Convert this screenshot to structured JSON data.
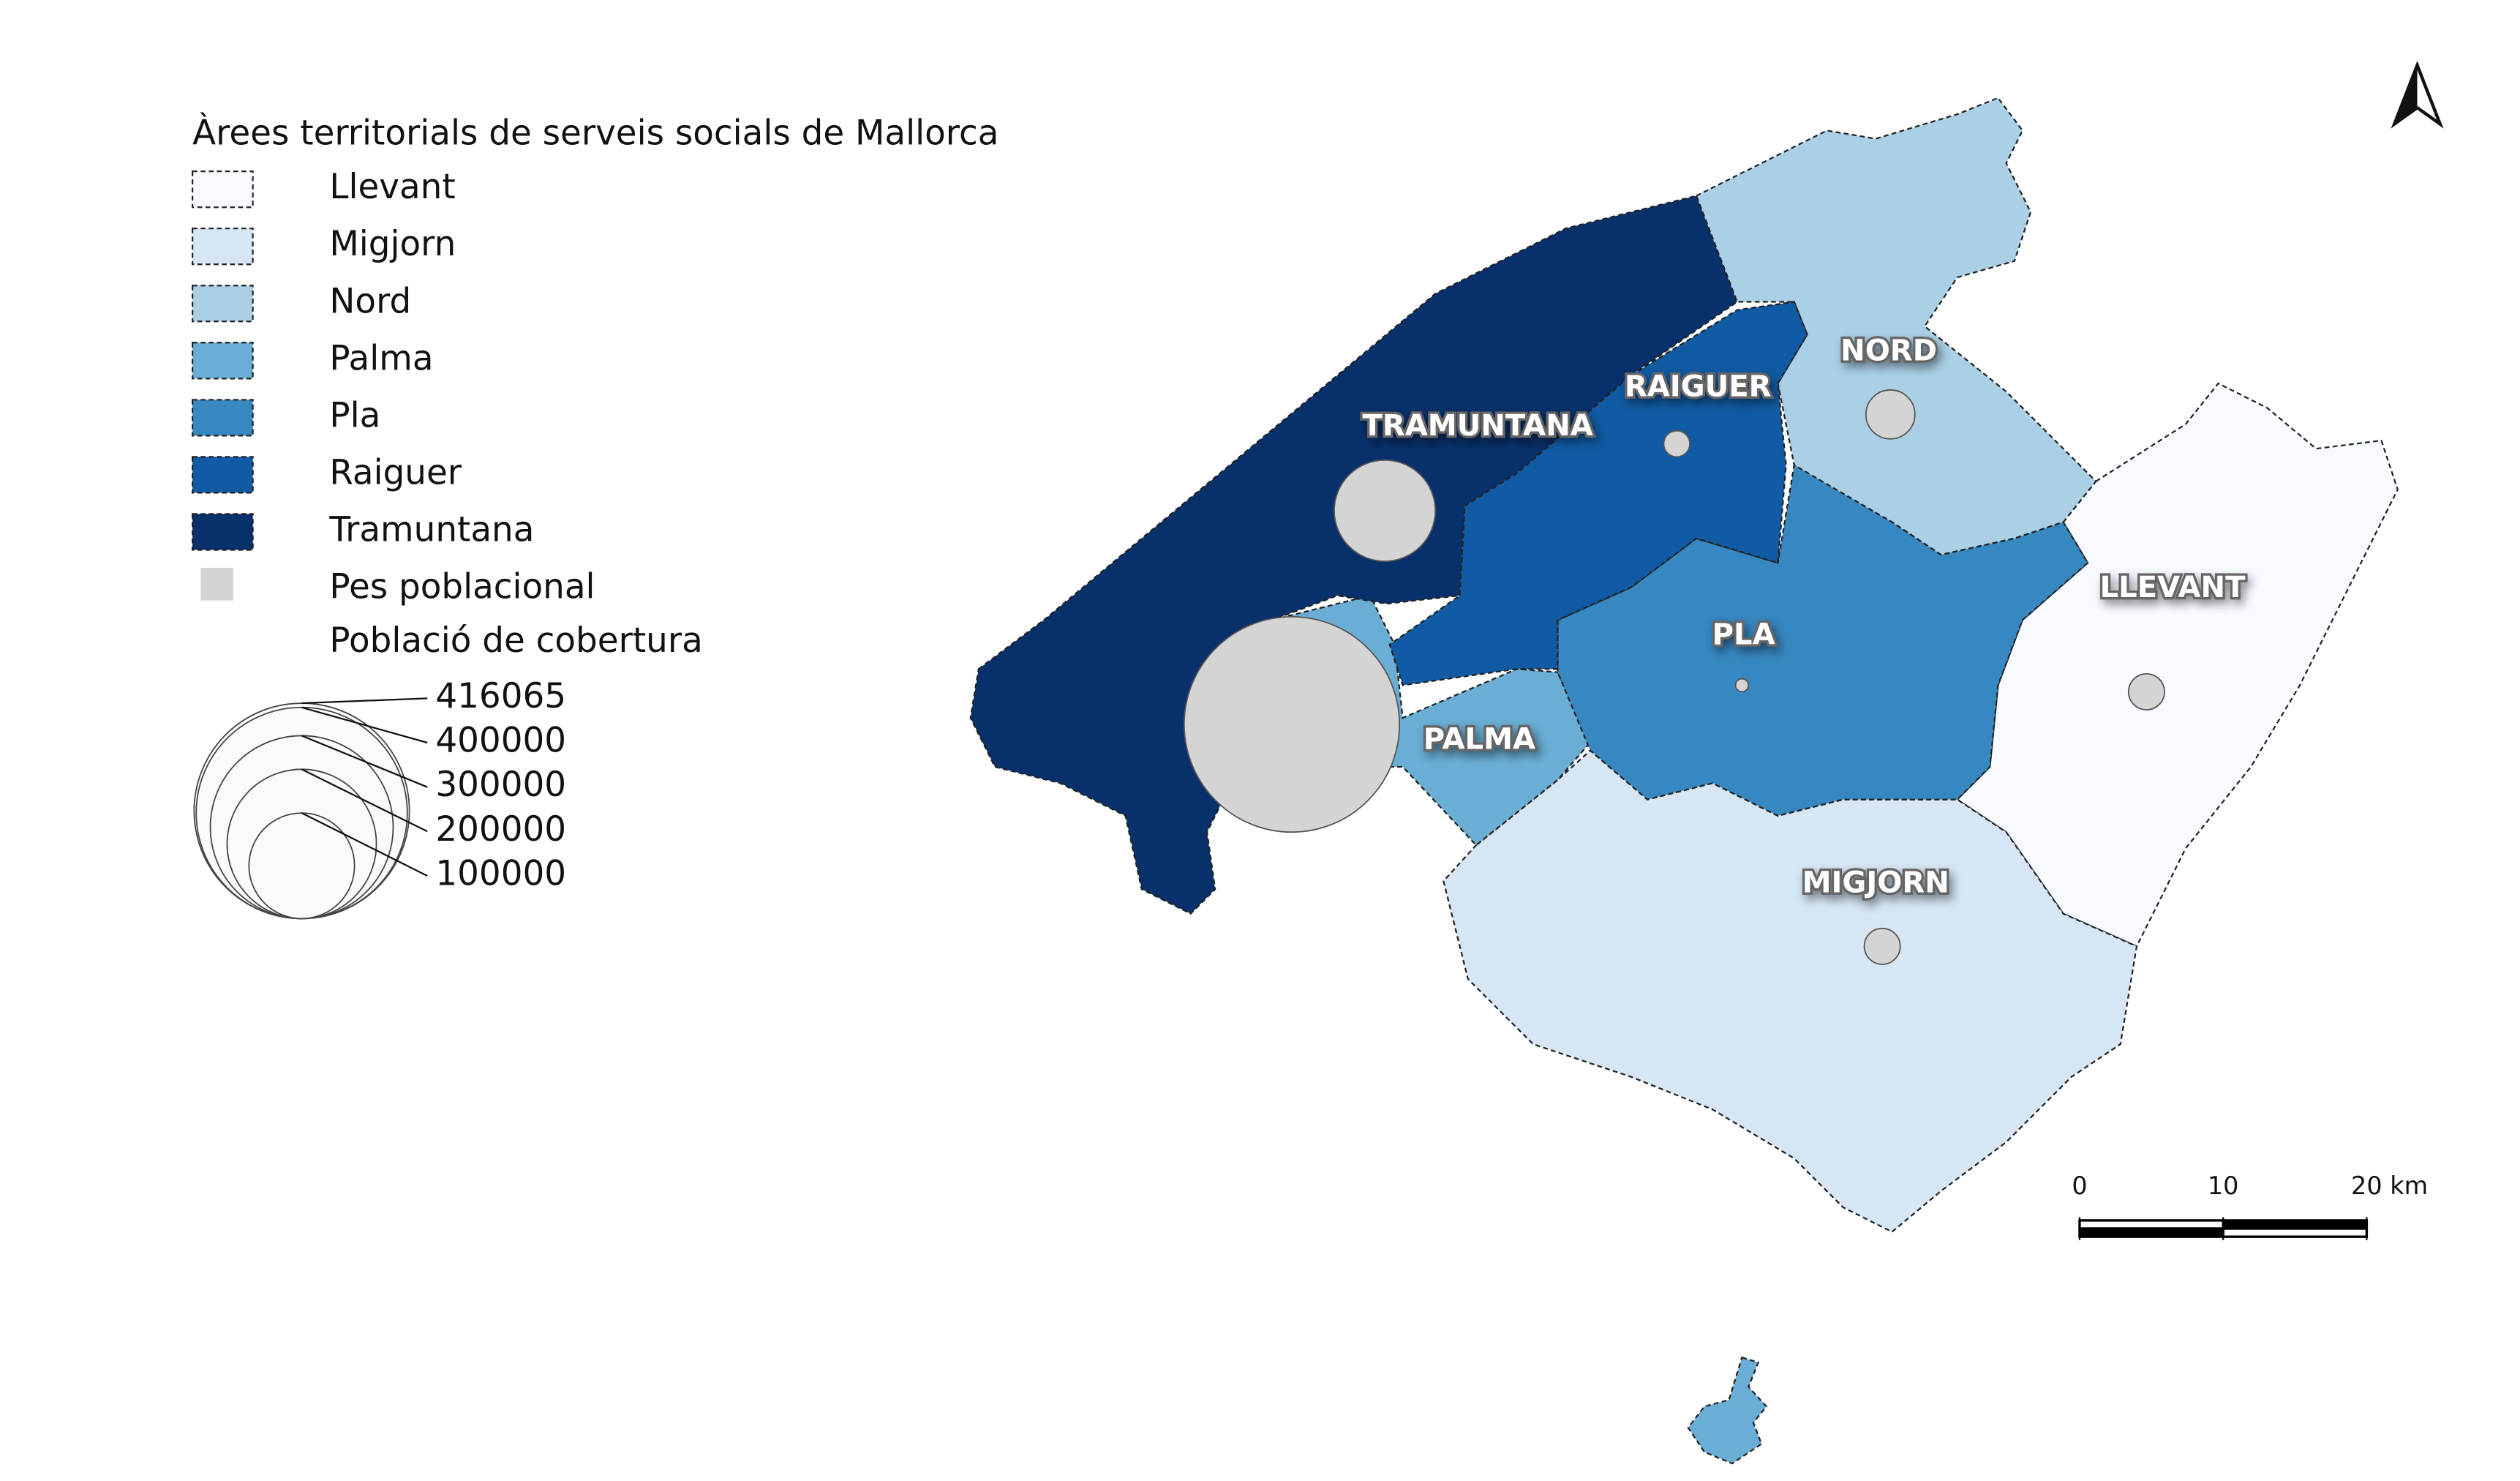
{
  "legend": {
    "title": "Àrees territorials de serveis socials de Mallorca",
    "symbol_label": "Pes poblacional",
    "size_title": "Població de cobertura",
    "size_values": [
      416065,
      400000,
      300000,
      200000,
      100000
    ]
  },
  "regions": [
    {
      "name": "Llevant",
      "label": "LLEVANT",
      "color": "#f7fbff",
      "population": 11600
    },
    {
      "name": "Migjorn",
      "label": "MIGJORN",
      "color": "#d6e6f4",
      "population": 11600
    },
    {
      "name": "Nord",
      "label": "NORD",
      "color": "#abd0e6",
      "population": 21500
    },
    {
      "name": "Palma",
      "label": "PALMA",
      "color": "#6aaed6",
      "population": 416065
    },
    {
      "name": "Pla",
      "label": "PLA",
      "color": "#3787c0",
      "population": 1500
    },
    {
      "name": "Raiguer",
      "label": "RAIGUER",
      "color": "#105ba4",
      "population": 6100
    },
    {
      "name": "Tramuntana",
      "label": "TRAMUNTANA",
      "color": "#08306b",
      "population": 91800
    }
  ],
  "symbol_color": "#d4d4d4",
  "scale_bar": {
    "ticks": [
      0,
      10,
      {
        "value": 20,
        "label": "20 km"
      }
    ]
  }
}
